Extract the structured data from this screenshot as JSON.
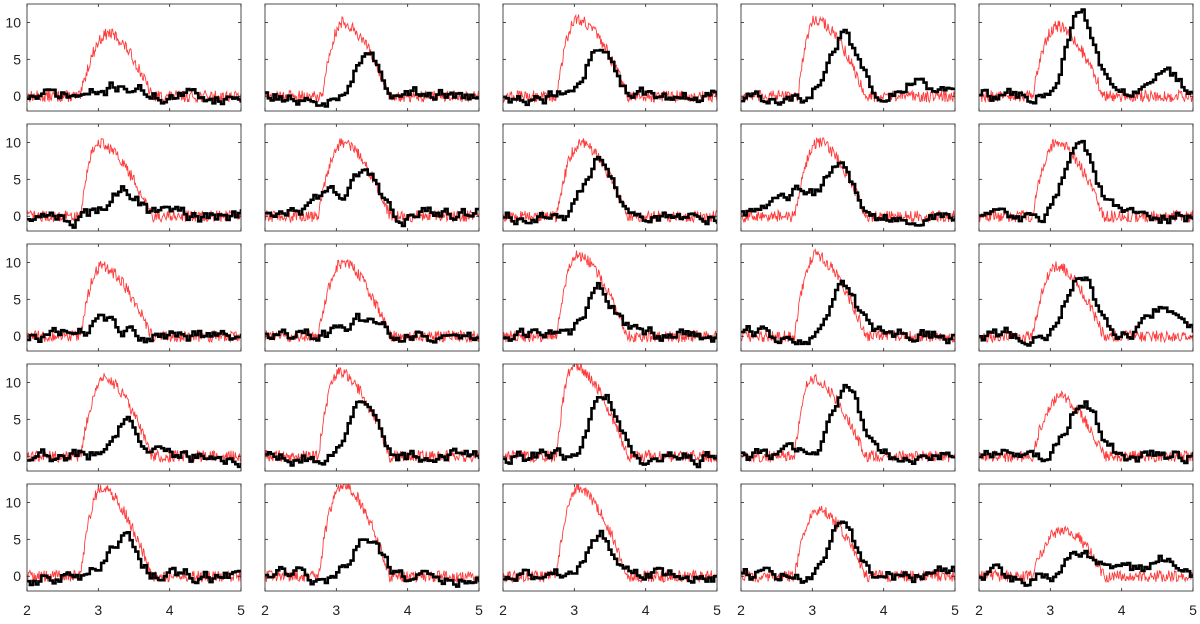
{
  "chart_data": {
    "type": "line",
    "layout": "small-multiples",
    "rows": 5,
    "cols": 5,
    "title": "",
    "xlabel": "",
    "ylabel": "",
    "xlim": [
      2,
      5
    ],
    "ylim": [
      -2,
      12.5
    ],
    "x_ticks": [
      "2",
      "3",
      "4",
      "5"
    ],
    "y_ticks": [
      "0",
      "5",
      "10"
    ],
    "grid": false,
    "colors": {
      "red": "#ff3b3b",
      "black": "#000000"
    },
    "series_legend": [],
    "panels": [
      {
        "row": 0,
        "col": 0,
        "red": {
          "amp": 8.5,
          "center": 3.15,
          "rise": 2.75,
          "fall": 3.6
        },
        "black": {
          "peaks": [
            [
              3.35,
              1.5
            ]
          ]
        }
      },
      {
        "row": 0,
        "col": 1,
        "red": {
          "amp": 10,
          "center": 3.1,
          "rise": 2.8,
          "fall": 3.6
        },
        "black": {
          "peaks": [
            [
              3.4,
              5.5
            ]
          ]
        }
      },
      {
        "row": 0,
        "col": 2,
        "red": {
          "amp": 10.5,
          "center": 3.05,
          "rise": 2.75,
          "fall": 3.6
        },
        "black": {
          "peaks": [
            [
              3.35,
              7
            ]
          ]
        }
      },
      {
        "row": 0,
        "col": 3,
        "red": {
          "amp": 10.5,
          "center": 3.05,
          "rise": 2.8,
          "fall": 3.6
        },
        "black": {
          "peaks": [
            [
              3.4,
              8.5
            ],
            [
              4.45,
              2
            ]
          ]
        }
      },
      {
        "row": 0,
        "col": 4,
        "red": {
          "amp": 9.5,
          "center": 3.1,
          "rise": 2.75,
          "fall": 3.6
        },
        "black": {
          "peaks": [
            [
              3.4,
              11
            ],
            [
              4.55,
              3.5
            ]
          ]
        }
      },
      {
        "row": 1,
        "col": 0,
        "red": {
          "amp": 10,
          "center": 3.0,
          "rise": 2.75,
          "fall": 3.6
        },
        "black": {
          "peaks": [
            [
              3.35,
              4
            ]
          ]
        }
      },
      {
        "row": 1,
        "col": 1,
        "red": {
          "amp": 10,
          "center": 3.1,
          "rise": 2.75,
          "fall": 3.6
        },
        "black": {
          "peaks": [
            [
              2.9,
              3
            ],
            [
              3.4,
              5.5
            ]
          ]
        }
      },
      {
        "row": 1,
        "col": 2,
        "red": {
          "amp": 10,
          "center": 3.1,
          "rise": 2.75,
          "fall": 3.6
        },
        "black": {
          "peaks": [
            [
              3.35,
              7.5
            ]
          ]
        }
      },
      {
        "row": 1,
        "col": 3,
        "red": {
          "amp": 10,
          "center": 3.1,
          "rise": 2.75,
          "fall": 3.6
        },
        "black": {
          "peaks": [
            [
              2.75,
              3
            ],
            [
              3.35,
              6.5
            ]
          ]
        }
      },
      {
        "row": 1,
        "col": 4,
        "red": {
          "amp": 10,
          "center": 3.1,
          "rise": 2.75,
          "fall": 3.6
        },
        "black": {
          "peaks": [
            [
              3.4,
              10.5
            ]
          ]
        }
      },
      {
        "row": 2,
        "col": 0,
        "red": {
          "amp": 9.5,
          "center": 3.05,
          "rise": 2.75,
          "fall": 3.6
        },
        "black": {
          "peaks": [
            [
              3.05,
              1.5
            ]
          ]
        }
      },
      {
        "row": 2,
        "col": 1,
        "red": {
          "amp": 10,
          "center": 3.1,
          "rise": 2.75,
          "fall": 3.6
        },
        "black": {
          "peaks": [
            [
              3.3,
              2
            ]
          ]
        }
      },
      {
        "row": 2,
        "col": 2,
        "red": {
          "amp": 11,
          "center": 3.05,
          "rise": 2.75,
          "fall": 3.6
        },
        "black": {
          "peaks": [
            [
              3.35,
              6
            ]
          ]
        }
      },
      {
        "row": 2,
        "col": 3,
        "red": {
          "amp": 11,
          "center": 3.05,
          "rise": 2.75,
          "fall": 3.6
        },
        "black": {
          "peaks": [
            [
              3.4,
              7
            ]
          ]
        }
      },
      {
        "row": 2,
        "col": 4,
        "red": {
          "amp": 9.5,
          "center": 3.1,
          "rise": 2.75,
          "fall": 3.6
        },
        "black": {
          "peaks": [
            [
              3.4,
              8.5
            ],
            [
              4.55,
              4
            ]
          ]
        }
      },
      {
        "row": 3,
        "col": 0,
        "red": {
          "amp": 10.5,
          "center": 3.1,
          "rise": 2.75,
          "fall": 3.6
        },
        "black": {
          "peaks": [
            [
              3.35,
              4.5
            ]
          ]
        }
      },
      {
        "row": 3,
        "col": 1,
        "red": {
          "amp": 11.5,
          "center": 3.05,
          "rise": 2.75,
          "fall": 3.6
        },
        "black": {
          "peaks": [
            [
              3.35,
              7
            ]
          ]
        }
      },
      {
        "row": 3,
        "col": 2,
        "red": {
          "amp": 12.5,
          "center": 3.0,
          "rise": 2.75,
          "fall": 3.6
        },
        "black": {
          "peaks": [
            [
              3.4,
              9
            ]
          ]
        }
      },
      {
        "row": 3,
        "col": 3,
        "red": {
          "amp": 10.5,
          "center": 3.0,
          "rise": 2.75,
          "fall": 3.6
        },
        "black": {
          "peaks": [
            [
              3.45,
              9
            ]
          ]
        }
      },
      {
        "row": 3,
        "col": 4,
        "red": {
          "amp": 8,
          "center": 3.15,
          "rise": 2.75,
          "fall": 3.6
        },
        "black": {
          "peaks": [
            [
              3.45,
              8
            ]
          ]
        }
      },
      {
        "row": 4,
        "col": 0,
        "red": {
          "amp": 12,
          "center": 3.05,
          "rise": 2.75,
          "fall": 3.6
        },
        "black": {
          "peaks": [
            [
              3.35,
              5
            ]
          ]
        }
      },
      {
        "row": 4,
        "col": 1,
        "red": {
          "amp": 12.5,
          "center": 3.1,
          "rise": 2.75,
          "fall": 3.6
        },
        "black": {
          "peaks": [
            [
              3.4,
              5
            ]
          ]
        }
      },
      {
        "row": 4,
        "col": 2,
        "red": {
          "amp": 12,
          "center": 3.05,
          "rise": 2.75,
          "fall": 3.6
        },
        "black": {
          "peaks": [
            [
              3.35,
              5.5
            ]
          ]
        }
      },
      {
        "row": 4,
        "col": 3,
        "red": {
          "amp": 9,
          "center": 3.1,
          "rise": 2.75,
          "fall": 3.6
        },
        "black": {
          "peaks": [
            [
              3.4,
              7
            ]
          ]
        }
      },
      {
        "row": 4,
        "col": 4,
        "red": {
          "amp": 6.5,
          "center": 3.2,
          "rise": 2.75,
          "fall": 3.6
        },
        "black": {
          "peaks": [
            [
              3.4,
              3.5
            ],
            [
              4.6,
              2
            ]
          ]
        }
      }
    ]
  }
}
